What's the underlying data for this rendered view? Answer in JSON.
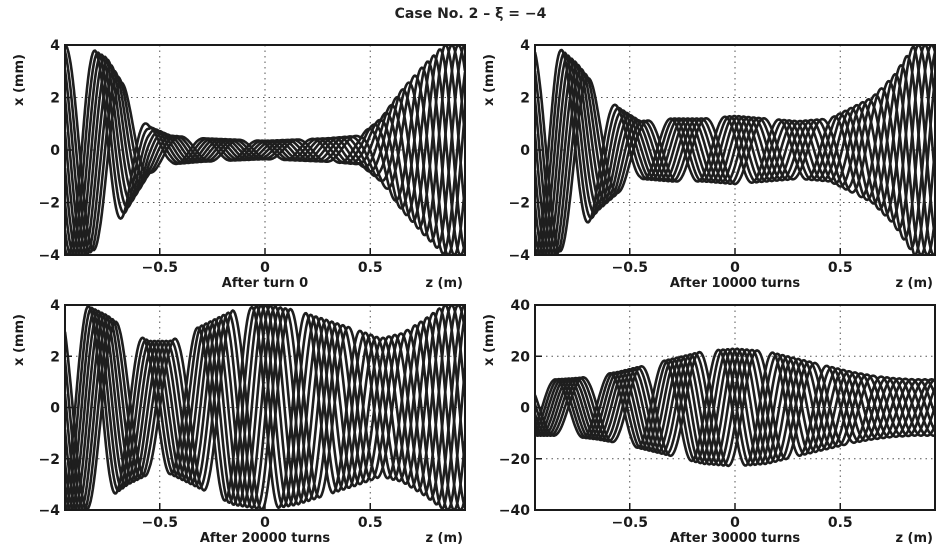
{
  "figure": {
    "title": "Case No. 2  –  ξ = −4"
  },
  "chart_data": [
    {
      "type": "line",
      "caption": "After turn 0",
      "xlabel": "z (m)",
      "ylabel": "x (mm)",
      "xlim": [
        -0.95,
        0.95
      ],
      "ylim": [
        -4,
        4
      ],
      "x_ticks": [
        -0.5,
        0,
        0.5
      ],
      "x_tick_labels": [
        "−0.5",
        "0",
        "0.5"
      ],
      "y_ticks": [
        -4,
        -2,
        0,
        2,
        4
      ],
      "y_tick_labels": [
        "−4",
        "−2",
        "0",
        "2",
        "4"
      ],
      "grid": true,
      "envelope": {
        "z": [
          -0.95,
          -0.85,
          -0.75,
          -0.65,
          -0.55,
          -0.45,
          -0.3,
          -0.15,
          0,
          0.15,
          0.3,
          0.45,
          0.55,
          0.65,
          0.75,
          0.85,
          0.95
        ],
        "amplitude": [
          4,
          4,
          3.5,
          2.2,
          0.9,
          0.55,
          0.45,
          0.4,
          0.35,
          0.4,
          0.45,
          0.55,
          1.2,
          2.3,
          3.2,
          4,
          4
        ]
      },
      "series": [
        {
          "values_desc": "betatron oscillation trajectories",
          "color": "#1e1e1e"
        }
      ]
    },
    {
      "type": "line",
      "caption": "After 10000 turns",
      "xlabel": "z (m)",
      "ylabel": "x (mm)",
      "xlim": [
        -0.95,
        0.95
      ],
      "ylim": [
        -4,
        4
      ],
      "x_ticks": [
        -0.5,
        0,
        0.5
      ],
      "x_tick_labels": [
        "−0.5",
        "0",
        "0.5"
      ],
      "y_ticks": [
        -4,
        -2,
        0,
        2,
        4
      ],
      "y_tick_labels": [
        "−4",
        "−2",
        "0",
        "2",
        "4"
      ],
      "grid": true,
      "envelope": {
        "z": [
          -0.95,
          -0.85,
          -0.75,
          -0.65,
          -0.55,
          -0.45,
          -0.3,
          -0.15,
          0,
          0.15,
          0.3,
          0.45,
          0.55,
          0.65,
          0.75,
          0.85,
          0.95
        ],
        "amplitude": [
          4,
          4,
          3.3,
          2.3,
          1.6,
          1.1,
          1.2,
          1.2,
          1.3,
          1.2,
          1.1,
          1.2,
          1.6,
          2.0,
          2.8,
          4,
          4
        ]
      },
      "series": [
        {
          "values_desc": "betatron oscillation trajectories",
          "color": "#1e1e1e"
        }
      ]
    },
    {
      "type": "line",
      "caption": "After 20000 turns",
      "xlabel": "z (m)",
      "ylabel": "x (mm)",
      "xlim": [
        -0.95,
        0.95
      ],
      "ylim": [
        -4,
        4
      ],
      "x_ticks": [
        -0.5,
        0,
        0.5
      ],
      "x_tick_labels": [
        "−0.5",
        "0",
        "0.5"
      ],
      "y_ticks": [
        -4,
        -2,
        0,
        2,
        4
      ],
      "y_tick_labels": [
        "−4",
        "−2",
        "0",
        "2",
        "4"
      ],
      "grid": true,
      "envelope": {
        "z": [
          -0.95,
          -0.85,
          -0.75,
          -0.65,
          -0.55,
          -0.45,
          -0.3,
          -0.15,
          0,
          0.15,
          0.3,
          0.45,
          0.55,
          0.65,
          0.75,
          0.85,
          0.95
        ],
        "amplitude": [
          4,
          4,
          3.6,
          3.0,
          2.6,
          2.6,
          3.2,
          3.8,
          4,
          3.8,
          3.4,
          3.0,
          2.7,
          2.9,
          3.4,
          4,
          4
        ]
      },
      "series": [
        {
          "values_desc": "betatron oscillation trajectories",
          "color": "#1e1e1e"
        }
      ]
    },
    {
      "type": "line",
      "caption": "After 30000 turns",
      "xlabel": "z (m)",
      "ylabel": "x (mm)",
      "xlim": [
        -0.95,
        0.95
      ],
      "ylim": [
        -40,
        40
      ],
      "x_ticks": [
        -0.5,
        0,
        0.5
      ],
      "x_tick_labels": [
        "−0.5",
        "0",
        "0.5"
      ],
      "y_ticks": [
        -40,
        -20,
        0,
        20,
        40
      ],
      "y_tick_labels": [
        "−40",
        "−20",
        "0",
        "20",
        "40"
      ],
      "grid": true,
      "envelope": {
        "z": [
          -0.95,
          -0.85,
          -0.75,
          -0.65,
          -0.55,
          -0.45,
          -0.3,
          -0.15,
          0,
          0.15,
          0.3,
          0.45,
          0.55,
          0.65,
          0.75,
          0.85,
          0.95
        ],
        "amplitude": [
          11,
          11,
          11.5,
          12.5,
          14,
          16,
          19,
          22,
          23,
          22,
          19,
          16,
          14,
          12.5,
          11.5,
          11,
          11
        ]
      },
      "series": [
        {
          "values_desc": "betatron oscillation trajectories",
          "color": "#1e1e1e"
        }
      ]
    }
  ]
}
